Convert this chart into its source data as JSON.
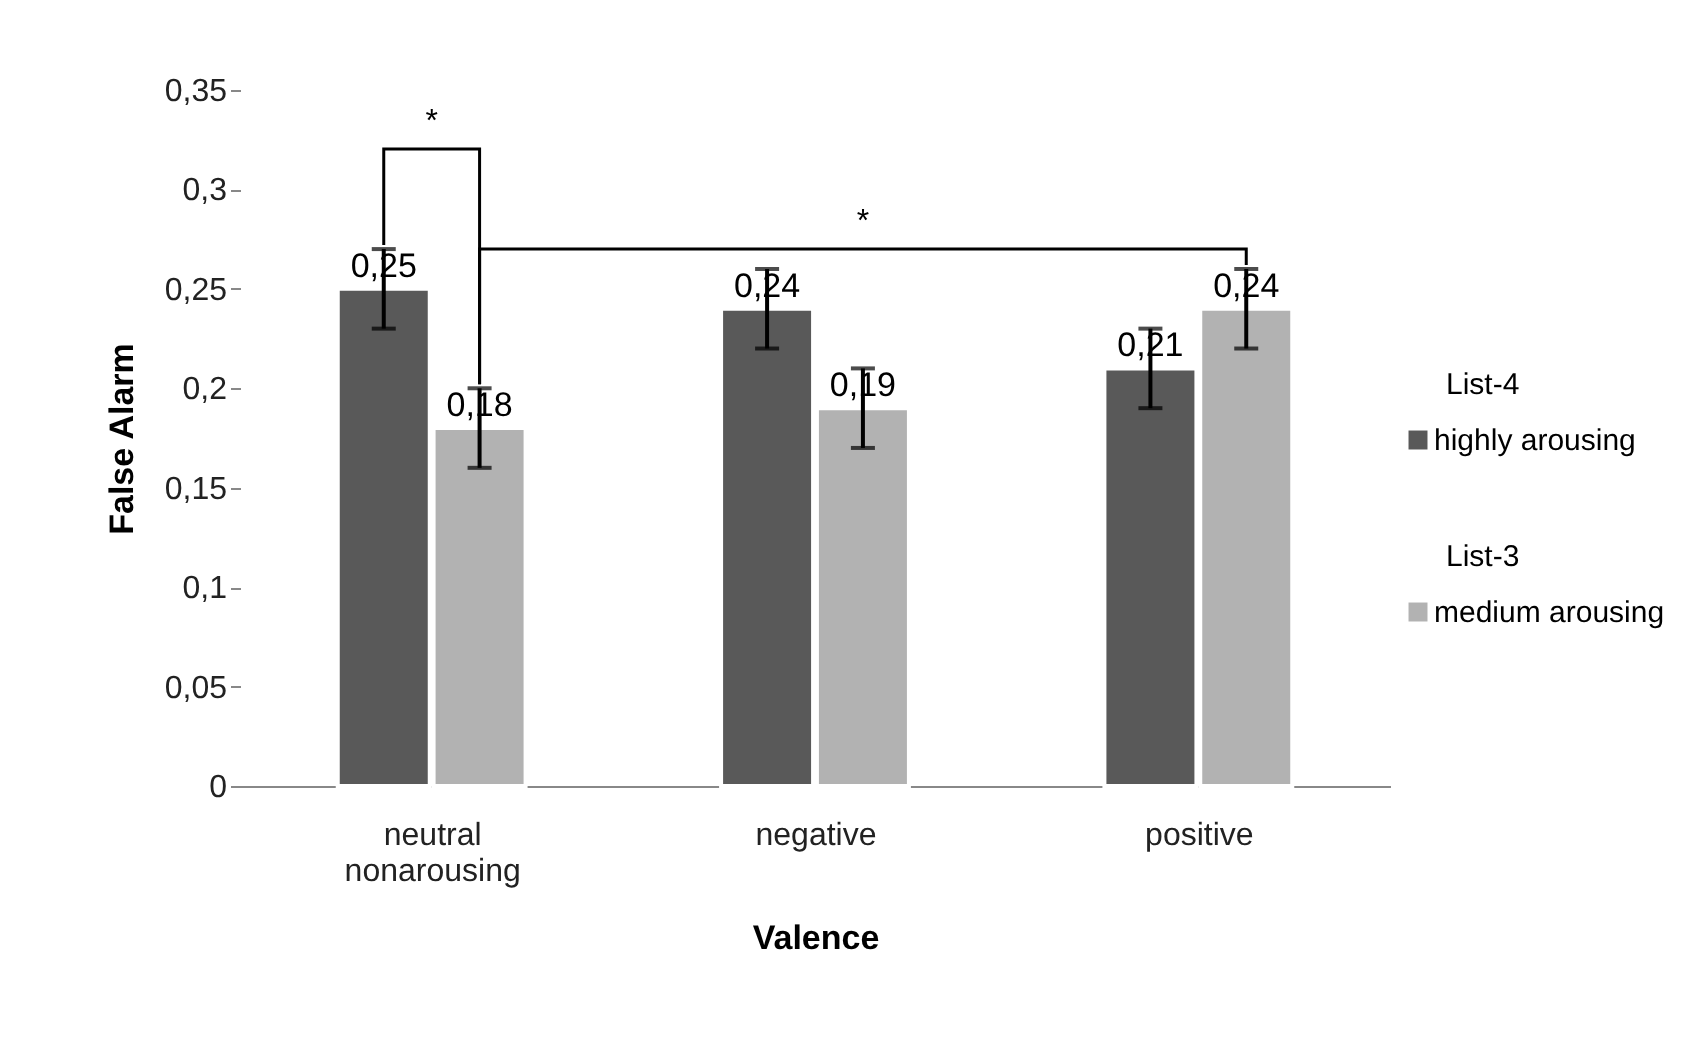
{
  "chart_data": {
    "type": "bar",
    "xlabel": "Valence",
    "ylabel": "False Alarm",
    "categories": [
      "neutral nonarousing",
      "negative",
      "positive"
    ],
    "series": [
      {
        "name": "highly arousing",
        "color": "#595959",
        "values": [
          0.25,
          0.24,
          0.21
        ],
        "errors": [
          0.02,
          0.02,
          0.02
        ],
        "value_labels": [
          "0,25",
          "0,24",
          "0,21"
        ]
      },
      {
        "name": "medium arousing",
        "color": "#b2b2b2",
        "values": [
          0.18,
          0.19,
          0.24
        ],
        "errors": [
          0.02,
          0.02,
          0.02
        ],
        "value_labels": [
          "0,18",
          "0,19",
          "0,24"
        ]
      }
    ],
    "ylim": [
      0,
      0.35
    ],
    "yticks": [
      0,
      {
        "value": 0.05,
        "label": "0,05"
      },
      {
        "value": 0.1,
        "label": "0,1"
      },
      {
        "value": 0.15,
        "label": "0,15"
      },
      {
        "value": 0.2,
        "label": "0,2"
      },
      {
        "value": 0.25,
        "label": "0,25"
      },
      {
        "value": 0.3,
        "label": "0,3"
      },
      {
        "value": 0.35,
        "label": "0,35"
      }
    ],
    "grid": false,
    "legend": "right",
    "annotations": [
      "*",
      "*",
      "List-4",
      "List-3"
    ]
  }
}
